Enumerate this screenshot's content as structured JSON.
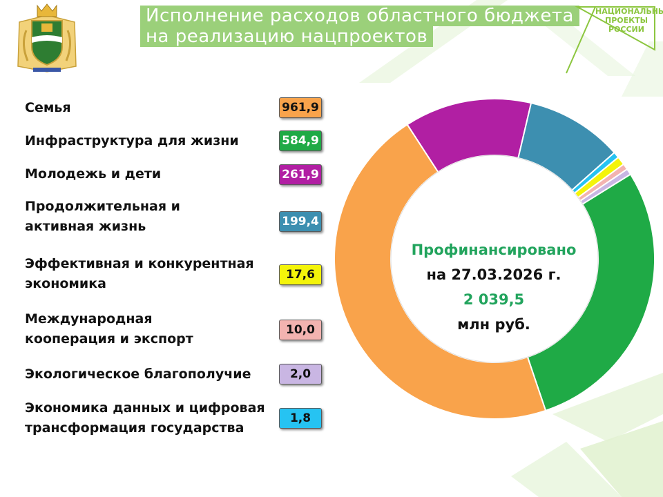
{
  "header": {
    "title_line1": "Исполнение расходов областного бюджета",
    "title_line2": "на реализацию нацпроектов",
    "logo_text": [
      "НАЦИОНАЛЬНЫЕ",
      "ПРОЕКТЫ",
      "РОССИИ"
    ]
  },
  "colors": {
    "accent_green": "#9bd07a",
    "center_green": "#22a45d",
    "logo_green": "#8cc63f"
  },
  "center": {
    "label": "Профинансировано",
    "date": "на 27.03.2026 г.",
    "total": "2 039,5",
    "unit": "млн руб."
  },
  "chart_data": {
    "type": "pie",
    "variant": "donut",
    "series": [
      {
        "name": "Семья",
        "value": 961.9,
        "label": "961,9",
        "color": "#f9a34b",
        "text_color": "#111111"
      },
      {
        "name": "Инфраструктура для жизни",
        "value": 584.9,
        "label": "584,9",
        "color": "#1faa46",
        "text_color": "#ffffff"
      },
      {
        "name": "Молодежь и дети",
        "value": 261.9,
        "label": "261,9",
        "color": "#b11fa3",
        "text_color": "#ffffff"
      },
      {
        "name": "Продолжительная и\nактивная жизнь",
        "value": 199.4,
        "label": "199,4",
        "color": "#3d8fb0",
        "text_color": "#ffffff"
      },
      {
        "name": "Эффективная и конкурентная\nэкономика",
        "value": 17.6,
        "label": "17,6",
        "color": "#f4f40a",
        "text_color": "#111111"
      },
      {
        "name": "Международная\nкооперация и экспорт",
        "value": 10.0,
        "label": "10,0",
        "color": "#f3b3b0",
        "text_color": "#111111"
      },
      {
        "name": "Экологическое благополучие",
        "value": 2.0,
        "label": "2,0",
        "color": "#c9b6e3",
        "text_color": "#111111"
      },
      {
        "name": "Экономика данных и цифровая\nтрансформация государства",
        "value": 1.8,
        "label": "1,8",
        "color": "#26c3f2",
        "text_color": "#111111"
      }
    ],
    "total": 2039.5,
    "legend": "left"
  }
}
